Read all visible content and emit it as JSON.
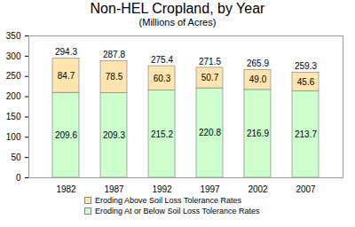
{
  "chart_data": {
    "type": "bar",
    "title": "Non-HEL Cropland, by Year",
    "subtitle": "(Millions of Acres)",
    "categories": [
      "1982",
      "1987",
      "1992",
      "1997",
      "2002",
      "2007"
    ],
    "series": [
      {
        "name": "Eroding At or Below Soil Loss Tolerance Rates",
        "color": "#ccffcc",
        "values": [
          209.6,
          209.3,
          215.2,
          220.8,
          216.9,
          213.7
        ]
      },
      {
        "name": "Eroding Above Soil Loss Tolerance Rates",
        "color": "#ffe4b0",
        "values": [
          84.7,
          78.5,
          60.3,
          50.7,
          49.0,
          45.6
        ],
        "value_labels": [
          "84.7",
          "78.5",
          "60.3",
          "50.7",
          "49.0",
          "45.6"
        ]
      }
    ],
    "totals": [
      294.3,
      287.8,
      275.4,
      271.5,
      265.9,
      259.3
    ],
    "ylim": [
      0,
      350
    ],
    "yticks": [
      0,
      50,
      100,
      150,
      200,
      250,
      300,
      350
    ],
    "stacked": true,
    "data_labels": true,
    "grid": false,
    "legend": "bottom"
  }
}
